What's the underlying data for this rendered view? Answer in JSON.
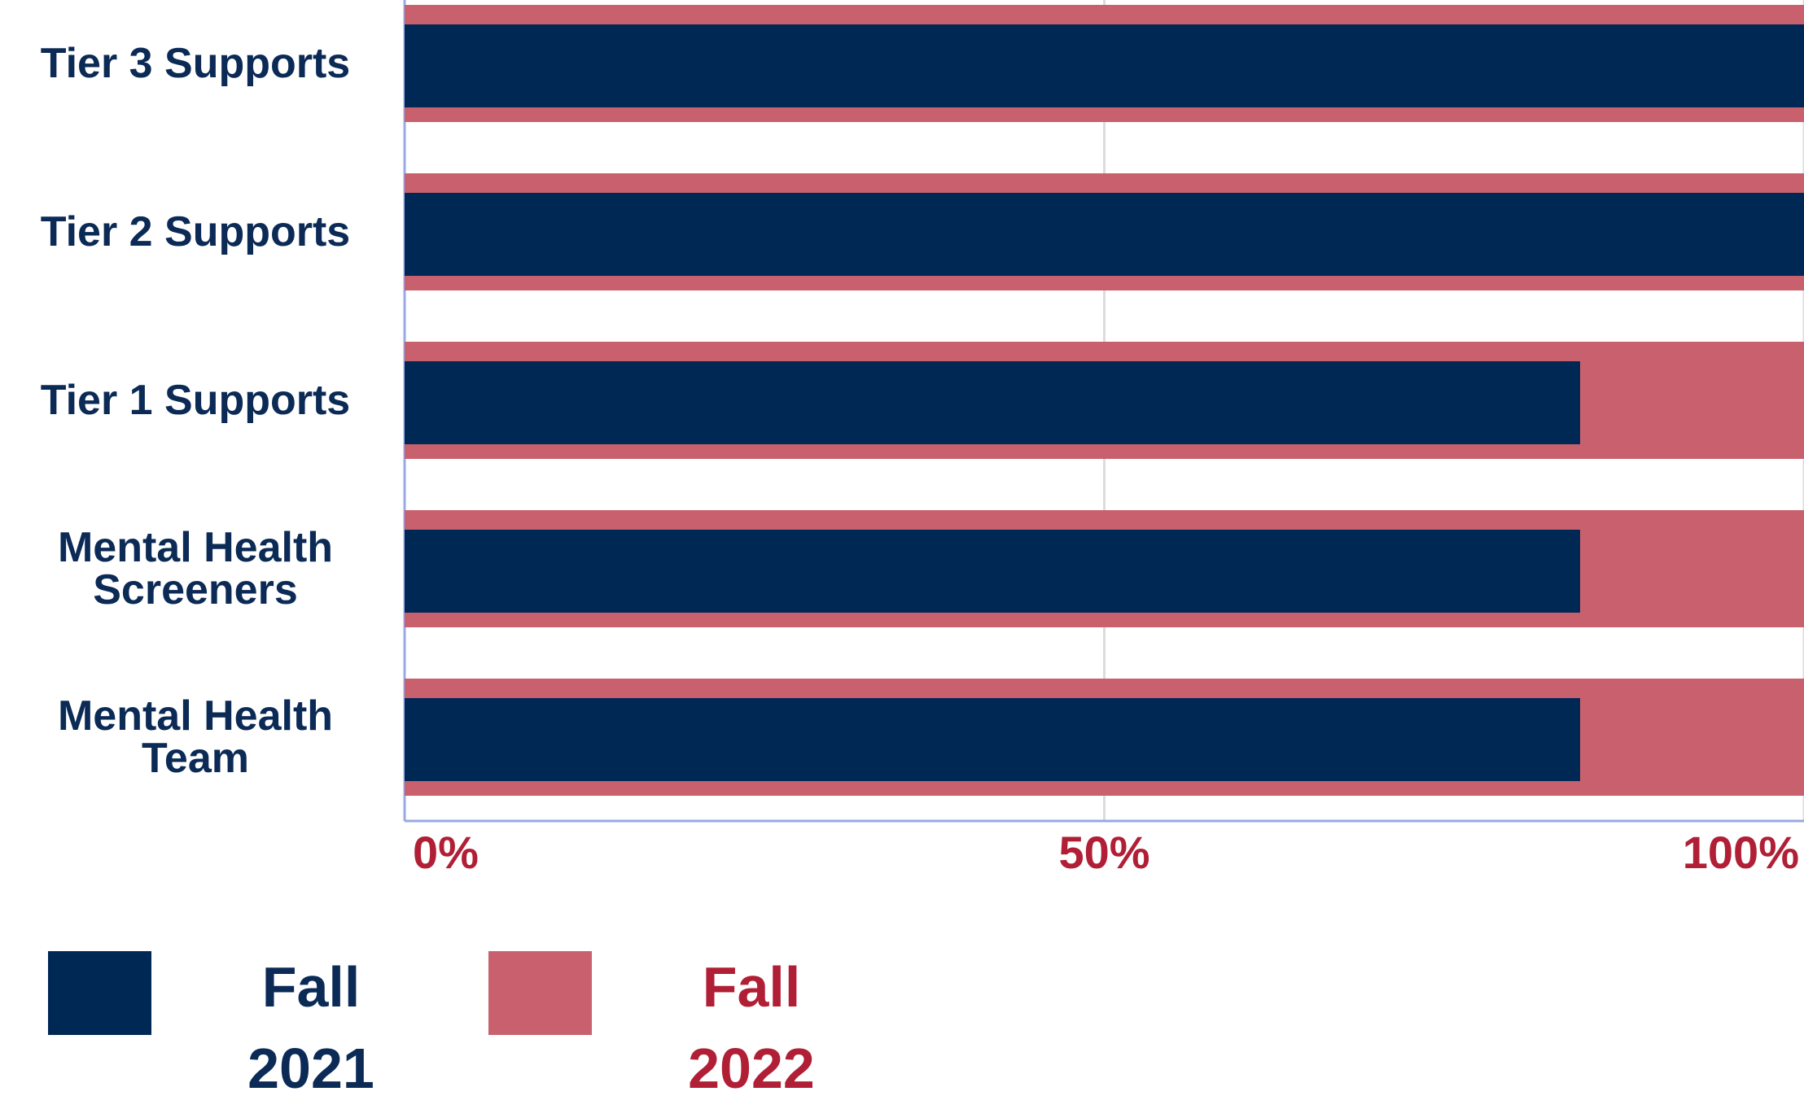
{
  "chart_data": {
    "type": "bar",
    "orientation": "horizontal",
    "overlap": true,
    "categories": [
      "Tier 3 Supports",
      "Tier 2 Supports",
      "Tier 1 Supports",
      "Mental Health Screeners",
      "Mental Health Team"
    ],
    "series": [
      {
        "name": "Fall 2022",
        "color": "#c8616d",
        "values": [
          100,
          100,
          100,
          100,
          100
        ]
      },
      {
        "name": "Fall 2021",
        "color": "#002855",
        "values": [
          100,
          100,
          84,
          84,
          84
        ]
      }
    ],
    "legend_order": [
      1,
      0
    ],
    "xlim": [
      0,
      100
    ],
    "xticks": [
      {
        "value": 0,
        "label": "0%"
      },
      {
        "value": 50,
        "label": "50%"
      },
      {
        "value": 100,
        "label": "100%"
      }
    ],
    "grid": true
  }
}
